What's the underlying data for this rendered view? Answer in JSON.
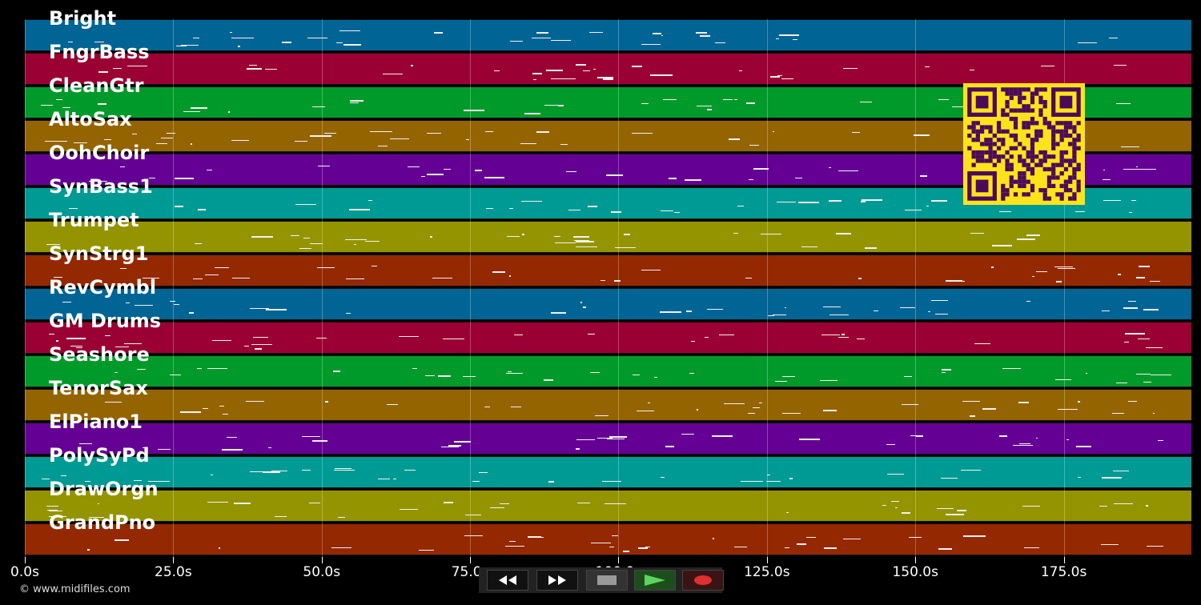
{
  "tracks": [
    {
      "name": "Bright",
      "color": "#006494"
    },
    {
      "name": "FngrBass",
      "color": "#9a0033"
    },
    {
      "name": "CleanGtr",
      "color": "#009a2a"
    },
    {
      "name": "AltoSax",
      "color": "#946400"
    },
    {
      "name": "OohChoir",
      "color": "#640094"
    },
    {
      "name": "SynBass1",
      "color": "#009a94"
    },
    {
      "name": "Trumpet",
      "color": "#949400"
    },
    {
      "name": "SynStrg1",
      "color": "#942800"
    },
    {
      "name": "RevCymbl",
      "color": "#006494"
    },
    {
      "name": "GM Drums",
      "color": "#9a0033"
    },
    {
      "name": "Seashore",
      "color": "#009a2a"
    },
    {
      "name": "TenorSax",
      "color": "#946400"
    },
    {
      "name": "ElPiano1",
      "color": "#640094"
    },
    {
      "name": "PolySyPd",
      "color": "#009a94"
    },
    {
      "name": "DrawOrgn",
      "color": "#949400"
    },
    {
      "name": "GrandPno",
      "color": "#942800"
    }
  ],
  "timeline": {
    "ticks": [
      "0.0s",
      "25.0s",
      "50.0s",
      "75.0s",
      "100.0s",
      "125.0s",
      "150.0s",
      "175.0s"
    ]
  },
  "footer": {
    "copyright": "© www.midifiles.com"
  },
  "controls": {
    "rewind": "rewind-icon",
    "forward": "fast-forward-icon",
    "stop": "stop-icon",
    "play": "play-icon",
    "record": "record-icon"
  }
}
